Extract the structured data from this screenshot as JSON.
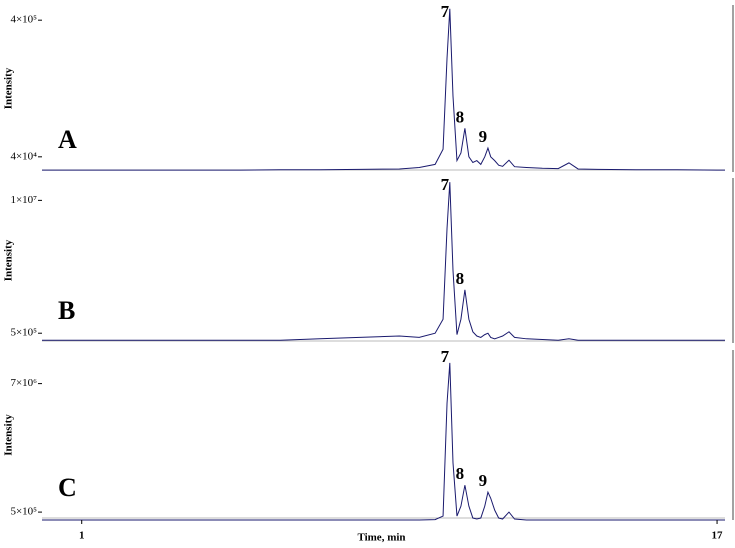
{
  "chart_data": [
    {
      "type": "line",
      "panel_label": "A",
      "ylabel": "Intensity",
      "color": "#1a1a6e",
      "xlim": [
        0,
        17.2
      ],
      "ylim": [
        0,
        440000
      ],
      "yticks": [
        {
          "value": 400000,
          "label": "4×10⁵"
        },
        {
          "value": 40000,
          "label": "4×10⁴"
        }
      ],
      "x": [
        0,
        1,
        2,
        3,
        4,
        5,
        6,
        7,
        8,
        9,
        9.5,
        9.9,
        10.1,
        10.2,
        10.27,
        10.35,
        10.45,
        10.55,
        10.65,
        10.75,
        10.85,
        10.95,
        11.05,
        11.15,
        11.23,
        11.3,
        11.4,
        11.5,
        11.6,
        11.76,
        11.9,
        12.2,
        12.6,
        13.0,
        13.27,
        13.5,
        14,
        15,
        16,
        17,
        17.2
      ],
      "values": [
        5000,
        5000,
        5000,
        5000,
        5000,
        5000,
        6000,
        6000,
        7000,
        8000,
        12000,
        20000,
        60000,
        300000,
        430000,
        200000,
        30000,
        50000,
        115000,
        40000,
        25000,
        30000,
        20000,
        40000,
        63000,
        40000,
        30000,
        18000,
        15000,
        31000,
        14000,
        12000,
        10000,
        9000,
        24000,
        8000,
        7000,
        6000,
        6000,
        5000,
        5000
      ],
      "annotations": [
        {
          "text": "7",
          "x": 10.27
        },
        {
          "text": "8",
          "x": 10.65
        },
        {
          "text": "9",
          "x": 11.23
        }
      ]
    },
    {
      "type": "line",
      "panel_label": "B",
      "ylabel": "Intensity",
      "color": "#1a1a6e",
      "xlim": [
        0,
        17.2
      ],
      "ylim": [
        -200000,
        11600000
      ],
      "yticks": [
        {
          "value": 10000000,
          "label": "1×10⁷"
        },
        {
          "value": 500000,
          "label": "5×10⁵"
        }
      ],
      "x": [
        0,
        1,
        2,
        3,
        4,
        5,
        6,
        7,
        8,
        9,
        9.5,
        9.9,
        10.1,
        10.2,
        10.27,
        10.35,
        10.45,
        10.55,
        10.65,
        10.75,
        10.85,
        10.95,
        11.05,
        11.15,
        11.23,
        11.3,
        11.4,
        11.5,
        11.6,
        11.76,
        11.9,
        12.2,
        12.6,
        13.0,
        13.27,
        13.5,
        14,
        15,
        16,
        17,
        17.2
      ],
      "values": [
        0,
        0,
        0,
        0,
        0,
        0,
        0,
        100000,
        200000,
        300000,
        200000,
        500000,
        1500000,
        8000000,
        11300000,
        5000000,
        400000,
        1500000,
        3600000,
        1500000,
        600000,
        300000,
        200000,
        400000,
        500000,
        200000,
        100000,
        200000,
        300000,
        600000,
        200000,
        100000,
        50000,
        0,
        100000,
        0,
        0,
        0,
        0,
        0,
        0
      ],
      "annotations": [
        {
          "text": "7",
          "x": 10.27
        },
        {
          "text": "8",
          "x": 10.65
        }
      ]
    },
    {
      "type": "line",
      "panel_label": "C",
      "ylabel": "Intensity",
      "color": "#1a1a6e",
      "xlim": [
        0,
        17.2
      ],
      "ylim": [
        100000,
        8700000
      ],
      "yticks": [
        {
          "value": 7000000,
          "label": "7×10⁶"
        },
        {
          "value": 500000,
          "label": "5×10⁵"
        }
      ],
      "x": [
        0,
        1,
        2,
        3,
        4,
        5,
        6,
        7,
        8,
        9,
        9.5,
        9.9,
        10.1,
        10.2,
        10.27,
        10.35,
        10.45,
        10.55,
        10.65,
        10.75,
        10.85,
        10.95,
        11.05,
        11.15,
        11.23,
        11.3,
        11.4,
        11.5,
        11.6,
        11.76,
        11.9,
        12.2,
        12.6,
        13.0,
        13.27,
        13.5,
        14,
        15,
        16,
        17,
        17.2
      ],
      "values": [
        100000,
        100000,
        100000,
        100000,
        100000,
        100000,
        100000,
        100000,
        100000,
        100000,
        100000,
        120000,
        300000,
        6000000,
        8050000,
        3000000,
        300000,
        800000,
        1860000,
        800000,
        200000,
        150000,
        200000,
        800000,
        1510000,
        1200000,
        600000,
        200000,
        150000,
        500000,
        150000,
        100000,
        100000,
        100000,
        100000,
        100000,
        100000,
        100000,
        100000,
        100000,
        100000
      ],
      "annotations": [
        {
          "text": "7",
          "x": 10.27
        },
        {
          "text": "8",
          "x": 10.65
        },
        {
          "text": "9",
          "x": 11.23
        }
      ],
      "xlabel": "Time, min",
      "xticks": [
        1,
        17
      ]
    }
  ]
}
